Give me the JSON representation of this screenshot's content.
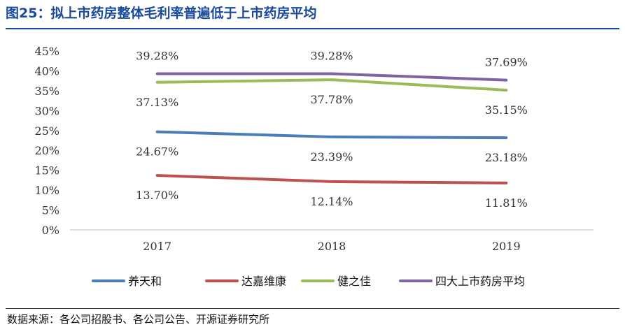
{
  "header": {
    "title": "图25：拟上市药房整体毛利率普遍低于上市药房平均"
  },
  "footer": {
    "source": "数据来源：各公司招股书、各公司公告、开源证券研究所"
  },
  "chart_data": {
    "type": "line",
    "title": "拟上市药房整体毛利率普遍低于上市药房平均",
    "categories": [
      "2017",
      "2018",
      "2019"
    ],
    "ylim": [
      0,
      45
    ],
    "yticks": [
      "0%",
      "5%",
      "10%",
      "15%",
      "20%",
      "25%",
      "30%",
      "35%",
      "40%",
      "45%"
    ],
    "y_unit": "%",
    "grid": false,
    "legend_position": "bottom",
    "series": [
      {
        "name": "养天和",
        "color": "#4a7ebb",
        "values": [
          24.67,
          23.39,
          23.18
        ],
        "labels": [
          "24.67%",
          "23.39%",
          "23.18%"
        ]
      },
      {
        "name": "达嘉维康",
        "color": "#c0504d",
        "values": [
          13.7,
          12.14,
          11.81
        ],
        "labels": [
          "13.70%",
          "12.14%",
          "11.81%"
        ]
      },
      {
        "name": "健之佳",
        "color": "#9bbb59",
        "values": [
          37.13,
          37.78,
          35.15
        ],
        "labels": [
          "37.13%",
          "37.78%",
          "35.15%"
        ]
      },
      {
        "name": "四大上市药房平均",
        "color": "#8064a2",
        "values": [
          39.28,
          39.28,
          37.69
        ],
        "labels": [
          "39.28%",
          "39.28%",
          "37.69%"
        ]
      }
    ]
  }
}
